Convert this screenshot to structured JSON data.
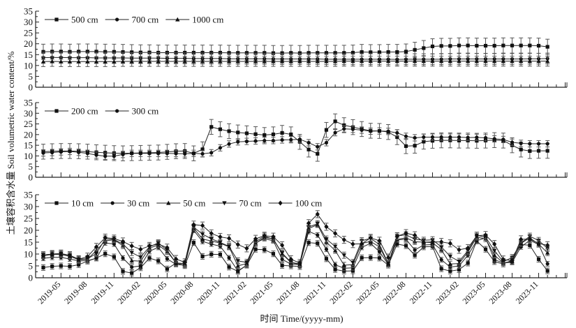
{
  "chart_data": [
    {
      "type": "line",
      "panel": "top",
      "ylim": [
        0,
        35
      ],
      "yticks": [
        0,
        5,
        10,
        15,
        20,
        25,
        30,
        35
      ],
      "legend_position": "top-left",
      "series": [
        {
          "name": "500 cm",
          "marker": "square",
          "values": [
            16.3,
            16.4,
            16.4,
            16.3,
            16.4,
            16.4,
            16.4,
            16.3,
            16.3,
            16.2,
            16.1,
            16.0,
            16.0,
            15.9,
            15.9,
            15.9,
            15.9,
            15.9,
            15.9,
            15.9,
            15.9,
            15.8,
            15.8,
            15.8,
            15.8,
            15.8,
            15.7,
            15.7,
            15.8,
            15.7,
            15.8,
            15.8,
            15.8,
            15.8,
            15.8,
            15.9,
            16.2,
            16.1,
            16.1,
            16.2,
            16.2,
            16.4,
            17.2,
            18.0,
            18.8,
            19.0,
            19.0,
            19.2,
            19.2,
            19.1,
            19.1,
            19.1,
            19.2,
            19.2,
            19.2,
            19.2,
            19.1,
            18.6
          ],
          "error": 3.5
        },
        {
          "name": "700 cm",
          "marker": "circle",
          "values": [
            13.6,
            13.7,
            13.7,
            13.6,
            13.6,
            13.6,
            13.5,
            13.5,
            13.5,
            13.5,
            13.4,
            13.4,
            13.4,
            13.4,
            13.3,
            13.3,
            13.3,
            13.2,
            13.2,
            13.2,
            13.2,
            13.1,
            13.1,
            13.1,
            13.1,
            13.1,
            13.0,
            13.0,
            13.0,
            13.0,
            13.0,
            13.0,
            12.9,
            12.9,
            12.9,
            12.9,
            12.9,
            12.9,
            12.9,
            12.9,
            12.8,
            12.9,
            12.9,
            12.9,
            12.9,
            12.9,
            13.0,
            13.0,
            13.0,
            13.0,
            13.0,
            13.0,
            13.0,
            13.0,
            13.0,
            13.1,
            13.1,
            13.2
          ],
          "error": 2.5
        },
        {
          "name": "1000 cm",
          "marker": "triangle-up",
          "values": [
            11.8,
            11.9,
            11.8,
            11.8,
            11.8,
            11.8,
            11.8,
            11.8,
            11.8,
            11.9,
            11.9,
            11.9,
            11.9,
            11.9,
            11.9,
            11.9,
            11.9,
            11.9,
            11.9,
            11.9,
            11.9,
            11.9,
            11.9,
            11.9,
            11.9,
            11.9,
            11.9,
            11.9,
            11.9,
            11.9,
            11.9,
            11.9,
            11.9,
            11.9,
            12.0,
            12.0,
            12.0,
            12.0,
            12.0,
            12.0,
            12.0,
            12.0,
            12.0,
            12.0,
            12.0,
            12.0,
            12.0,
            12.0,
            12.0,
            12.0,
            12.0,
            12.0,
            12.0,
            12.0,
            12.0,
            12.0,
            12.0,
            12.0
          ],
          "error": 2.3
        }
      ]
    },
    {
      "type": "line",
      "panel": "middle",
      "ylim": [
        0,
        35
      ],
      "yticks": [
        0,
        5,
        10,
        15,
        20,
        25,
        30,
        35
      ],
      "legend_position": "top-left",
      "series": [
        {
          "name": "200 cm",
          "marker": "square",
          "values": [
            12.0,
            12.2,
            12.3,
            12.3,
            12.2,
            12.0,
            11.7,
            11.5,
            11.3,
            11.2,
            11.3,
            11.4,
            11.5,
            11.6,
            11.9,
            12.2,
            12.3,
            11.2,
            13.1,
            23.6,
            22.5,
            21.6,
            21.0,
            20.6,
            20.2,
            19.8,
            20.1,
            20.8,
            20.1,
            16.6,
            13.0,
            11.0,
            22.2,
            26.2,
            24.4,
            23.5,
            22.6,
            21.8,
            21.7,
            21.2,
            18.8,
            14.6,
            14.8,
            16.7,
            17.1,
            17.3,
            17.3,
            17.2,
            17.2,
            17.1,
            17.2,
            17.4,
            17.2,
            15.0,
            13.0,
            12.3,
            12.4,
            12.4
          ],
          "error": 3.5
        },
        {
          "name": "300 cm",
          "marker": "circle",
          "values": [
            11.4,
            11.6,
            11.9,
            12.1,
            11.7,
            11.2,
            10.4,
            9.9,
            9.9,
            10.7,
            11.2,
            11.2,
            11.2,
            11.2,
            11.2,
            11.1,
            11.0,
            11.2,
            11.0,
            11.5,
            13.8,
            15.6,
            16.6,
            16.8,
            17.0,
            17.2,
            17.2,
            17.5,
            17.6,
            17.8,
            16.2,
            14.3,
            16.2,
            20.9,
            22.7,
            22.5,
            22.1,
            21.6,
            21.7,
            21.5,
            20.8,
            19.2,
            18.5,
            18.8,
            18.8,
            18.8,
            18.8,
            18.8,
            18.6,
            18.7,
            18.5,
            18.0,
            17.7,
            16.4,
            15.9,
            15.7,
            15.7,
            15.7
          ],
          "error": 1.5
        }
      ]
    },
    {
      "type": "line",
      "panel": "bottom",
      "ylim": [
        0,
        35
      ],
      "yticks": [
        0,
        5,
        10,
        15,
        20,
        25,
        30,
        35
      ],
      "xlabel": "时间 Time/(yyyy-mm)",
      "xticks": [
        "2019-05",
        "2019-08",
        "2019-11",
        "2020-02",
        "2020-05",
        "2020-08",
        "2020-11",
        "2021-02",
        "2021-05",
        "2021-08",
        "2021-11",
        "2022-02",
        "2022-05",
        "2022-08",
        "2022-11",
        "2023-02",
        "2023-05",
        "2023-08",
        "2023-11"
      ],
      "x_start": "2019-03",
      "x_end": "2023-12",
      "legend_position": "top-left",
      "series": [
        {
          "name": "10 cm",
          "marker": "square",
          "values": [
            4.3,
            4.8,
            5.0,
            4.8,
            5.5,
            7.0,
            8.3,
            10.1,
            8.8,
            2.7,
            2.0,
            4.2,
            8.3,
            7.1,
            3.7,
            6.2,
            5.1,
            14.8,
            9.0,
            9.9,
            9.8,
            4.5,
            2.7,
            5.3,
            12.0,
            11.8,
            10.1,
            5.2,
            5.0,
            4.7,
            14.8,
            14.5,
            8.0,
            3.5,
            2.8,
            2.9,
            8.4,
            8.5,
            8.3,
            5.3,
            14.2,
            13.5,
            9.5,
            13.0,
            13.2,
            3.8,
            2.8,
            3.4,
            6.2,
            15.5,
            12.0,
            6.8,
            5.8,
            7.4,
            14.0,
            13.7,
            7.8,
            2.9
          ],
          "error": 1.2
        },
        {
          "name": "30 cm",
          "marker": "circle",
          "values": [
            8.2,
            8.6,
            8.6,
            7.9,
            7.1,
            7.2,
            8.2,
            14.7,
            14.2,
            8.3,
            4.5,
            5.0,
            11.2,
            12.8,
            8.0,
            5.6,
            5.3,
            20.0,
            15.3,
            14.2,
            13.3,
            8.4,
            2.9,
            5.3,
            14.7,
            16.5,
            15.6,
            7.8,
            5.7,
            5.6,
            19.5,
            18.0,
            12.0,
            5.5,
            4.0,
            4.2,
            12.8,
            14.5,
            11.0,
            5.6,
            16.0,
            16.2,
            11.7,
            13.8,
            14.0,
            7.6,
            4.5,
            5.0,
            9.5,
            15.6,
            16.8,
            7.6,
            6.3,
            6.5,
            13.0,
            15.8,
            14.0,
            5.9
          ],
          "error": 1.0
        },
        {
          "name": "50 cm",
          "marker": "triangle-up",
          "values": [
            9.3,
            9.8,
            9.8,
            9.0,
            7.6,
            7.8,
            11.5,
            15.6,
            16.0,
            13.5,
            7.2,
            7.0,
            12.5,
            13.8,
            11.0,
            6.3,
            5.8,
            21.0,
            16.3,
            15.5,
            14.6,
            13.0,
            5.0,
            6.0,
            14.5,
            17.0,
            16.4,
            10.1,
            6.4,
            5.6,
            20.7,
            22.4,
            15.0,
            11.5,
            5.3,
            5.5,
            14.5,
            15.3,
            13.0,
            5.9,
            16.2,
            16.8,
            15.2,
            15.0,
            14.8,
            11.8,
            5.8,
            6.0,
            10.8,
            17.1,
            16.4,
            9.5,
            6.3,
            6.9,
            14.5,
            16.8,
            14.2,
            10.5
          ],
          "error": 1.2
        },
        {
          "name": "70 cm",
          "marker": "triangle-down",
          "values": [
            9.6,
            10.0,
            10.1,
            9.4,
            7.8,
            8.0,
            10.2,
            16.4,
            16.1,
            14.2,
            10.6,
            8.7,
            13.0,
            14.7,
            11.6,
            6.2,
            6.0,
            21.3,
            18.4,
            16.4,
            14.9,
            13.2,
            7.1,
            6.5,
            15.2,
            17.5,
            16.2,
            10.4,
            6.5,
            5.8,
            21.4,
            22.8,
            16.3,
            13.2,
            9.5,
            6.4,
            15.6,
            16.6,
            14.0,
            6.0,
            17.6,
            18.1,
            16.3,
            15.8,
            16.0,
            13.0,
            9.0,
            6.9,
            11.4,
            17.9,
            17.1,
            11.4,
            6.8,
            8.5,
            14.6,
            17.5,
            15.7,
            12.4
          ],
          "error": 1.3
        },
        {
          "name": "100 cm",
          "marker": "diamond",
          "values": [
            9.5,
            10.0,
            10.2,
            9.5,
            7.8,
            8.9,
            13.0,
            16.9,
            16.5,
            15.3,
            13.4,
            12.0,
            13.4,
            14.2,
            12.7,
            7.9,
            6.5,
            22.4,
            22.0,
            18.7,
            17.2,
            16.6,
            14.0,
            12.4,
            16.4,
            17.7,
            17.3,
            13.7,
            7.8,
            6.2,
            23.0,
            26.8,
            21.5,
            18.7,
            16.0,
            14.2,
            14.3,
            16.8,
            15.6,
            8.5,
            17.5,
            18.8,
            17.9,
            15.0,
            15.1,
            15.1,
            14.5,
            11.8,
            12.5,
            17.7,
            18.0,
            14.2,
            7.7,
            7.2,
            16.2,
            16.3,
            14.4,
            13.7
          ],
          "error": 1.5
        }
      ]
    }
  ],
  "y_axis_title": "土壤容积含水量 Soil volumetric water content/%"
}
